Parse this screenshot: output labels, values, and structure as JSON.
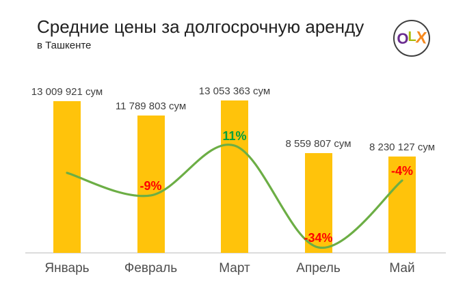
{
  "header": {
    "title": "Средние цены за долгосрочную аренду",
    "subtitle": "в Ташкенте"
  },
  "logo": {
    "name": "OLX",
    "letters": [
      {
        "char": "O",
        "color": "#6A2C8F"
      },
      {
        "char": "L",
        "color": "#A8BC0B"
      },
      {
        "char": "X",
        "color": "#F6891F"
      }
    ]
  },
  "colors": {
    "bar": "#FFC30B",
    "trend_line": "#6CAE45",
    "pct_positive": "#00A03C",
    "pct_negative": "#FE0000",
    "axis": "#DCDCDC",
    "value_label": "#3F3F3F",
    "month_label": "#4D4D4D"
  },
  "chart_data": {
    "type": "bar",
    "title": "Средние цены за долгосрочную аренду",
    "subtitle": "в Ташкенте",
    "categories": [
      "Январь",
      "Февраль",
      "Март",
      "Апрель",
      "Май"
    ],
    "values": [
      13009921,
      11789803,
      13053363,
      8559807,
      8230127
    ],
    "value_labels": [
      "13 009 921 сум",
      "11 789 803 сум",
      "13 053 363 сум",
      "8 559 807 сум",
      "8 230 127 сум"
    ],
    "pct_change_labels": [
      null,
      "-9%",
      "11%",
      "-34%",
      "-4%"
    ],
    "pct_change_values": [
      null,
      -9,
      11,
      -34,
      -4
    ],
    "currency": "сум",
    "ylim": [
      0,
      13053363
    ],
    "grid": false,
    "legend": false,
    "overlay_line": {
      "type": "smooth-trend",
      "y_frac_of_plot": [
        0.525,
        0.377,
        0.704,
        0.036,
        0.475
      ]
    }
  }
}
